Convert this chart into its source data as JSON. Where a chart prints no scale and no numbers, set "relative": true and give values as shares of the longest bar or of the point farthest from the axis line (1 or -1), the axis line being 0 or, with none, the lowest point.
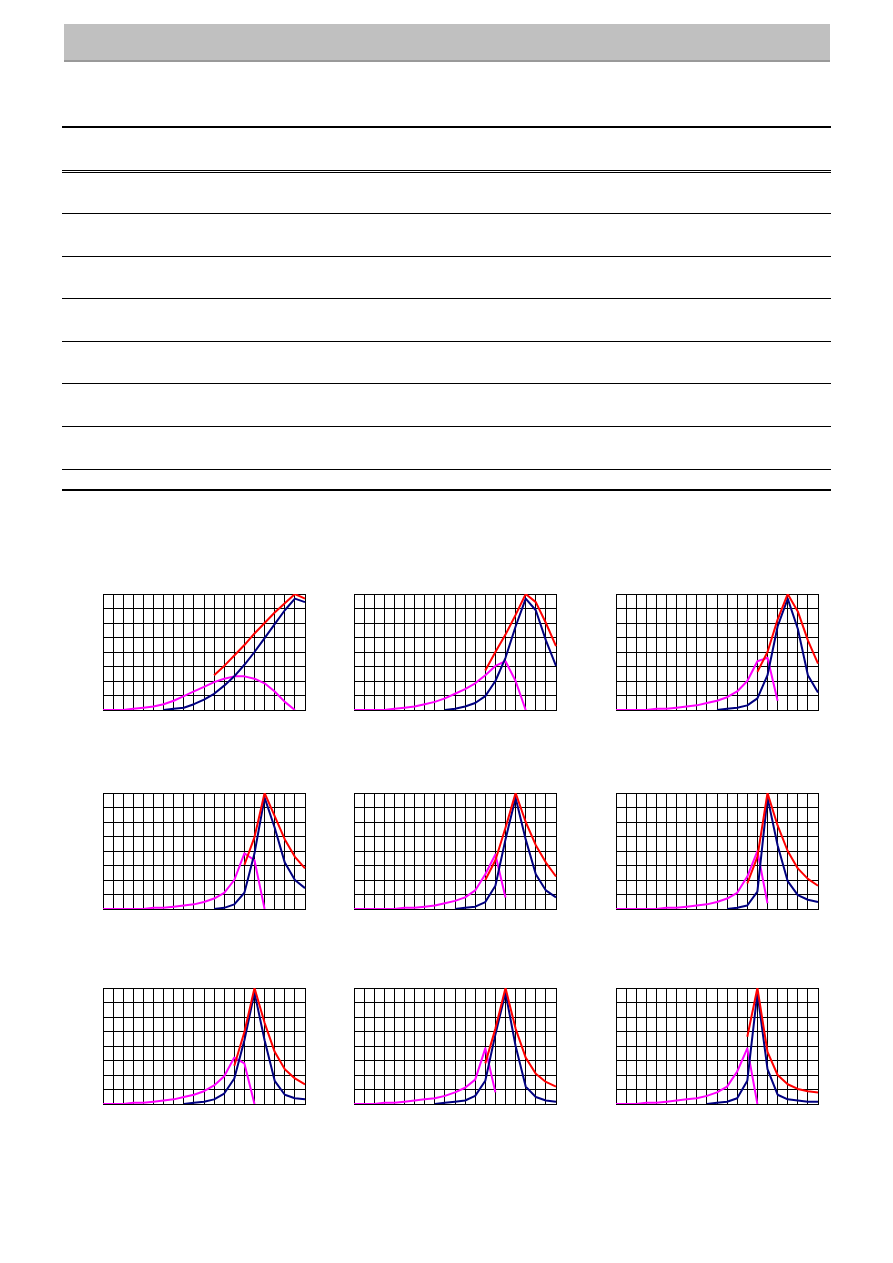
{
  "chart_data": [
    {
      "type": "line",
      "relative": true,
      "grid": true,
      "marker": "none",
      "categories": [
        null,
        null,
        null,
        null,
        null,
        null,
        null,
        null,
        null,
        null,
        null,
        null,
        null,
        null,
        null,
        null,
        null,
        null,
        null,
        null,
        null
      ],
      "series": [
        {
          "color": "#ff0000",
          "values": [
            null,
            null,
            null,
            null,
            null,
            null,
            null,
            null,
            null,
            null,
            null,
            0.3,
            0.38,
            0.47,
            0.56,
            0.66,
            0.75,
            0.84,
            0.92,
            1,
            0.96
          ]
        },
        {
          "color": "#000080",
          "values": [
            null,
            null,
            null,
            null,
            null,
            null,
            0,
            0.01,
            0.02,
            0.05,
            0.09,
            0.14,
            0.21,
            0.29,
            0.39,
            0.5,
            0.62,
            0.74,
            0.86,
            0.96,
            0.93
          ]
        },
        {
          "color": "#ff00ff",
          "values": [
            0,
            0,
            0,
            0.01,
            0.02,
            0.03,
            0.05,
            0.08,
            0.12,
            0.16,
            0.2,
            0.24,
            0.27,
            0.29,
            0.29,
            0.27,
            0.23,
            0.16,
            0.07,
            0,
            null
          ]
        }
      ]
    },
    {
      "type": "line",
      "relative": true,
      "grid": true,
      "marker": "none",
      "categories": [
        null,
        null,
        null,
        null,
        null,
        null,
        null,
        null,
        null,
        null,
        null,
        null,
        null,
        null,
        null,
        null,
        null,
        null,
        null,
        null,
        null
      ],
      "series": [
        {
          "color": "#ff0000",
          "values": [
            null,
            null,
            null,
            null,
            null,
            null,
            null,
            null,
            null,
            null,
            null,
            null,
            null,
            0.34,
            0.5,
            0.65,
            0.82,
            1,
            0.93,
            0.75,
            0.55
          ]
        },
        {
          "color": "#000080",
          "values": [
            null,
            null,
            null,
            null,
            null,
            null,
            null,
            null,
            null,
            0,
            0.01,
            0.03,
            0.06,
            0.12,
            0.25,
            0.45,
            0.72,
            0.96,
            0.86,
            0.6,
            0.38
          ]
        },
        {
          "color": "#ff00ff",
          "values": [
            0,
            0,
            0,
            0,
            0.01,
            0.02,
            0.03,
            0.05,
            0.07,
            0.1,
            0.14,
            0.18,
            0.23,
            0.3,
            0.38,
            0.42,
            0.25,
            0,
            null,
            null,
            null
          ]
        }
      ]
    },
    {
      "type": "line",
      "relative": true,
      "grid": true,
      "marker": "none",
      "categories": [
        null,
        null,
        null,
        null,
        null,
        null,
        null,
        null,
        null,
        null,
        null,
        null,
        null,
        null,
        null,
        null,
        null,
        null,
        null,
        null,
        null
      ],
      "series": [
        {
          "color": "#ff0000",
          "values": [
            null,
            null,
            null,
            null,
            null,
            null,
            null,
            null,
            null,
            null,
            null,
            null,
            null,
            null,
            0.33,
            0.5,
            0.78,
            1,
            0.85,
            0.6,
            0.4
          ]
        },
        {
          "color": "#000080",
          "values": [
            null,
            null,
            null,
            null,
            null,
            null,
            null,
            null,
            null,
            null,
            0,
            0.01,
            0.02,
            0.04,
            0.1,
            0.3,
            0.72,
            0.96,
            0.7,
            0.3,
            0.15
          ]
        },
        {
          "color": "#ff00ff",
          "values": [
            0,
            0,
            0,
            0,
            0.01,
            0.01,
            0.02,
            0.03,
            0.04,
            0.06,
            0.08,
            0.11,
            0.16,
            0.25,
            0.42,
            0.45,
            0.08,
            null,
            null,
            null,
            null
          ]
        }
      ]
    },
    {
      "type": "line",
      "relative": true,
      "grid": true,
      "marker": "none",
      "categories": [
        null,
        null,
        null,
        null,
        null,
        null,
        null,
        null,
        null,
        null,
        null,
        null,
        null,
        null,
        null,
        null,
        null,
        null,
        null,
        null,
        null
      ],
      "series": [
        {
          "color": "#ff0000",
          "values": [
            null,
            null,
            null,
            null,
            null,
            null,
            null,
            null,
            null,
            null,
            null,
            null,
            null,
            null,
            0.38,
            0.62,
            1,
            0.8,
            0.6,
            0.45,
            0.35
          ]
        },
        {
          "color": "#000080",
          "values": [
            null,
            null,
            null,
            null,
            null,
            null,
            null,
            null,
            null,
            null,
            null,
            0,
            0.01,
            0.04,
            0.14,
            0.48,
            0.96,
            0.7,
            0.4,
            0.25,
            0.18
          ]
        },
        {
          "color": "#ff00ff",
          "values": [
            0,
            0,
            0,
            0,
            0,
            0.01,
            0.01,
            0.02,
            0.03,
            0.04,
            0.06,
            0.09,
            0.14,
            0.25,
            0.48,
            0.42,
            0,
            null,
            null,
            null,
            null
          ]
        }
      ]
    },
    {
      "type": "line",
      "relative": true,
      "grid": true,
      "marker": "none",
      "categories": [
        null,
        null,
        null,
        null,
        null,
        null,
        null,
        null,
        null,
        null,
        null,
        null,
        null,
        null,
        null,
        null,
        null,
        null,
        null,
        null,
        null
      ],
      "series": [
        {
          "color": "#ff0000",
          "values": [
            null,
            null,
            null,
            null,
            null,
            null,
            null,
            null,
            null,
            null,
            null,
            null,
            null,
            0.25,
            0.42,
            0.7,
            1,
            0.75,
            0.55,
            0.4,
            0.28
          ]
        },
        {
          "color": "#000080",
          "values": [
            null,
            null,
            null,
            null,
            null,
            null,
            null,
            null,
            null,
            null,
            0,
            0.01,
            0.02,
            0.06,
            0.2,
            0.6,
            0.96,
            0.6,
            0.3,
            0.16,
            0.1
          ]
        },
        {
          "color": "#ff00ff",
          "values": [
            0,
            0,
            0,
            0,
            0,
            0.01,
            0.01,
            0.02,
            0.03,
            0.05,
            0.07,
            0.1,
            0.16,
            0.3,
            0.47,
            0.1,
            null,
            null,
            null,
            null,
            null
          ]
        }
      ]
    },
    {
      "type": "line",
      "relative": true,
      "grid": true,
      "marker": "none",
      "categories": [
        null,
        null,
        null,
        null,
        null,
        null,
        null,
        null,
        null,
        null,
        null,
        null,
        null,
        null,
        null,
        null,
        null,
        null,
        null,
        null,
        null
      ],
      "series": [
        {
          "color": "#ff0000",
          "values": [
            null,
            null,
            null,
            null,
            null,
            null,
            null,
            null,
            null,
            null,
            null,
            null,
            null,
            0.22,
            0.45,
            1,
            0.72,
            0.5,
            0.35,
            0.26,
            0.2
          ]
        },
        {
          "color": "#000080",
          "values": [
            null,
            null,
            null,
            null,
            null,
            null,
            null,
            null,
            null,
            null,
            null,
            0,
            0.01,
            0.03,
            0.15,
            0.96,
            0.55,
            0.24,
            0.12,
            0.08,
            0.06
          ]
        },
        {
          "color": "#ff00ff",
          "values": [
            0,
            0,
            0,
            0,
            0,
            0.01,
            0.01,
            0.02,
            0.03,
            0.04,
            0.06,
            0.09,
            0.14,
            0.28,
            0.5,
            0.05,
            null,
            null,
            null,
            null,
            null
          ]
        }
      ]
    },
    {
      "type": "line",
      "relative": true,
      "grid": true,
      "marker": "none",
      "categories": [
        null,
        null,
        null,
        null,
        null,
        null,
        null,
        null,
        null,
        null,
        null,
        null,
        null,
        null,
        null,
        null,
        null,
        null,
        null,
        null,
        null
      ],
      "series": [
        {
          "color": "#ff0000",
          "values": [
            null,
            null,
            null,
            null,
            null,
            null,
            null,
            null,
            null,
            null,
            null,
            null,
            null,
            0.33,
            0.62,
            1,
            0.7,
            0.45,
            0.3,
            0.22,
            0.17
          ]
        },
        {
          "color": "#000080",
          "values": [
            null,
            null,
            null,
            null,
            null,
            null,
            null,
            null,
            0,
            0.01,
            0.02,
            0.04,
            0.09,
            0.22,
            0.55,
            0.96,
            0.55,
            0.2,
            0.08,
            0.05,
            0.04
          ]
        },
        {
          "color": "#ff00ff",
          "values": [
            0,
            0,
            0,
            0.01,
            0.01,
            0.02,
            0.03,
            0.04,
            0.06,
            0.08,
            0.11,
            0.16,
            0.24,
            0.4,
            0.35,
            0,
            null,
            null,
            null,
            null,
            null
          ]
        }
      ]
    },
    {
      "type": "line",
      "relative": true,
      "grid": true,
      "marker": "none",
      "categories": [
        null,
        null,
        null,
        null,
        null,
        null,
        null,
        null,
        null,
        null,
        null,
        null,
        null,
        null,
        null,
        null,
        null,
        null,
        null,
        null,
        null
      ],
      "series": [
        {
          "color": "#ff0000",
          "values": [
            null,
            null,
            null,
            null,
            null,
            null,
            null,
            null,
            null,
            null,
            null,
            null,
            null,
            0.35,
            0.65,
            1,
            0.65,
            0.4,
            0.26,
            0.19,
            0.15
          ]
        },
        {
          "color": "#000080",
          "values": [
            null,
            null,
            null,
            null,
            null,
            null,
            null,
            null,
            0,
            0.01,
            0.02,
            0.03,
            0.07,
            0.2,
            0.6,
            0.96,
            0.5,
            0.15,
            0.06,
            0.03,
            0.02
          ]
        },
        {
          "color": "#ff00ff",
          "values": [
            0,
            0,
            0,
            0.01,
            0.01,
            0.02,
            0.03,
            0.04,
            0.05,
            0.07,
            0.1,
            0.14,
            0.21,
            0.48,
            0.1,
            null,
            null,
            null,
            null,
            null,
            null
          ]
        }
      ]
    },
    {
      "type": "line",
      "relative": true,
      "grid": true,
      "marker": "none",
      "categories": [
        null,
        null,
        null,
        null,
        null,
        null,
        null,
        null,
        null,
        null,
        null,
        null,
        null,
        null,
        null,
        null,
        null,
        null,
        null,
        null,
        null
      ],
      "series": [
        {
          "color": "#ff0000",
          "values": [
            null,
            null,
            null,
            null,
            null,
            null,
            null,
            null,
            null,
            null,
            null,
            null,
            null,
            0.58,
            1,
            0.45,
            0.25,
            0.17,
            0.13,
            0.11,
            0.1
          ]
        },
        {
          "color": "#000080",
          "values": [
            null,
            null,
            null,
            null,
            null,
            null,
            null,
            null,
            null,
            0,
            0.01,
            0.02,
            0.05,
            0.2,
            0.96,
            0.3,
            0.08,
            0.04,
            0.03,
            0.02,
            0.02
          ]
        },
        {
          "color": "#ff00ff",
          "values": [
            0,
            0,
            0,
            0.01,
            0.01,
            0.02,
            0.03,
            0.04,
            0.05,
            0.07,
            0.1,
            0.15,
            0.28,
            0.48,
            0,
            null,
            null,
            null,
            null,
            null,
            null
          ]
        }
      ]
    }
  ]
}
